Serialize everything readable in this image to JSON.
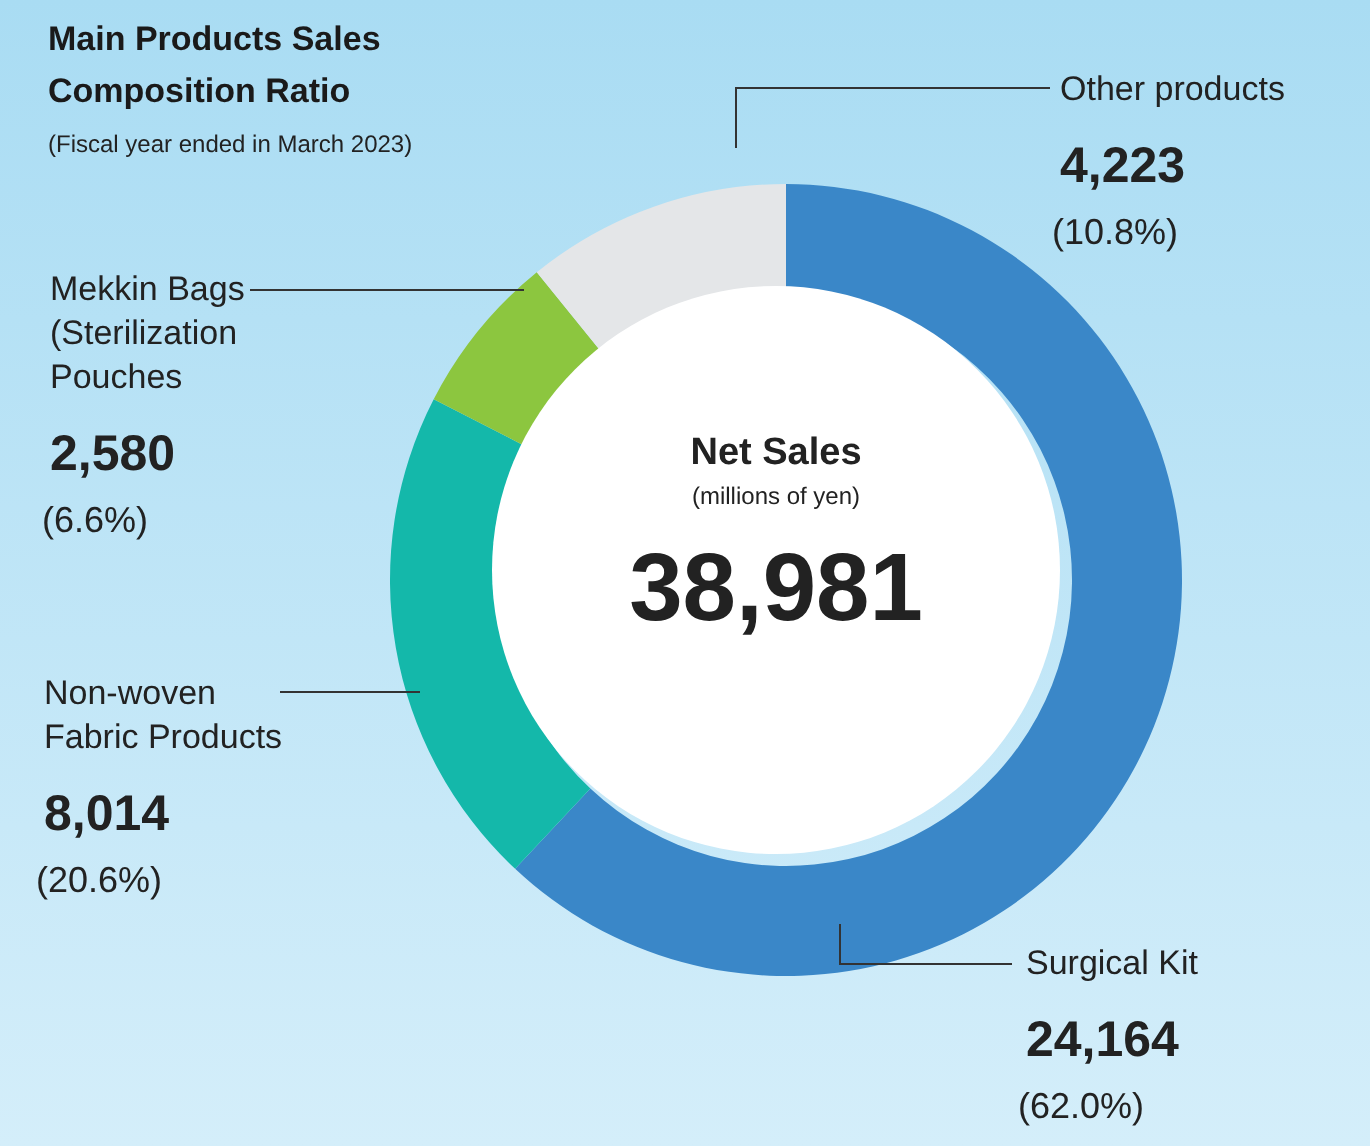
{
  "chart_data": {
    "type": "donut",
    "title": "Main Products Sales Composition Ratio",
    "subtitle": "(Fiscal year ended in March 2023)",
    "categories": [
      "Surgical Kit",
      "Non-woven Fabric Products",
      "Mekkin Bags (Sterilization Pouches",
      "Other products"
    ],
    "values": [
      24164,
      8014,
      2580,
      4223
    ],
    "colors": [
      "#3a87c8",
      "#14b8aa",
      "#8cc63f",
      "#e4e6e8"
    ],
    "value_labels": [
      "24,164",
      "8,014",
      "2,580",
      "4,223"
    ],
    "annotations": [
      "Net Sales",
      "(millions of yen)",
      "38,981",
      {
        "text": "(62.0%)",
        "x": "Surgical Kit"
      },
      {
        "text": "(20.6%)",
        "x": "Non-woven Fabric Products"
      },
      {
        "text": "(6.6%)",
        "x": "Mekkin Bags (Sterilization Pouches"
      },
      {
        "text": "(10.8%)",
        "x": "Other products"
      }
    ],
    "legend": false
  }
}
